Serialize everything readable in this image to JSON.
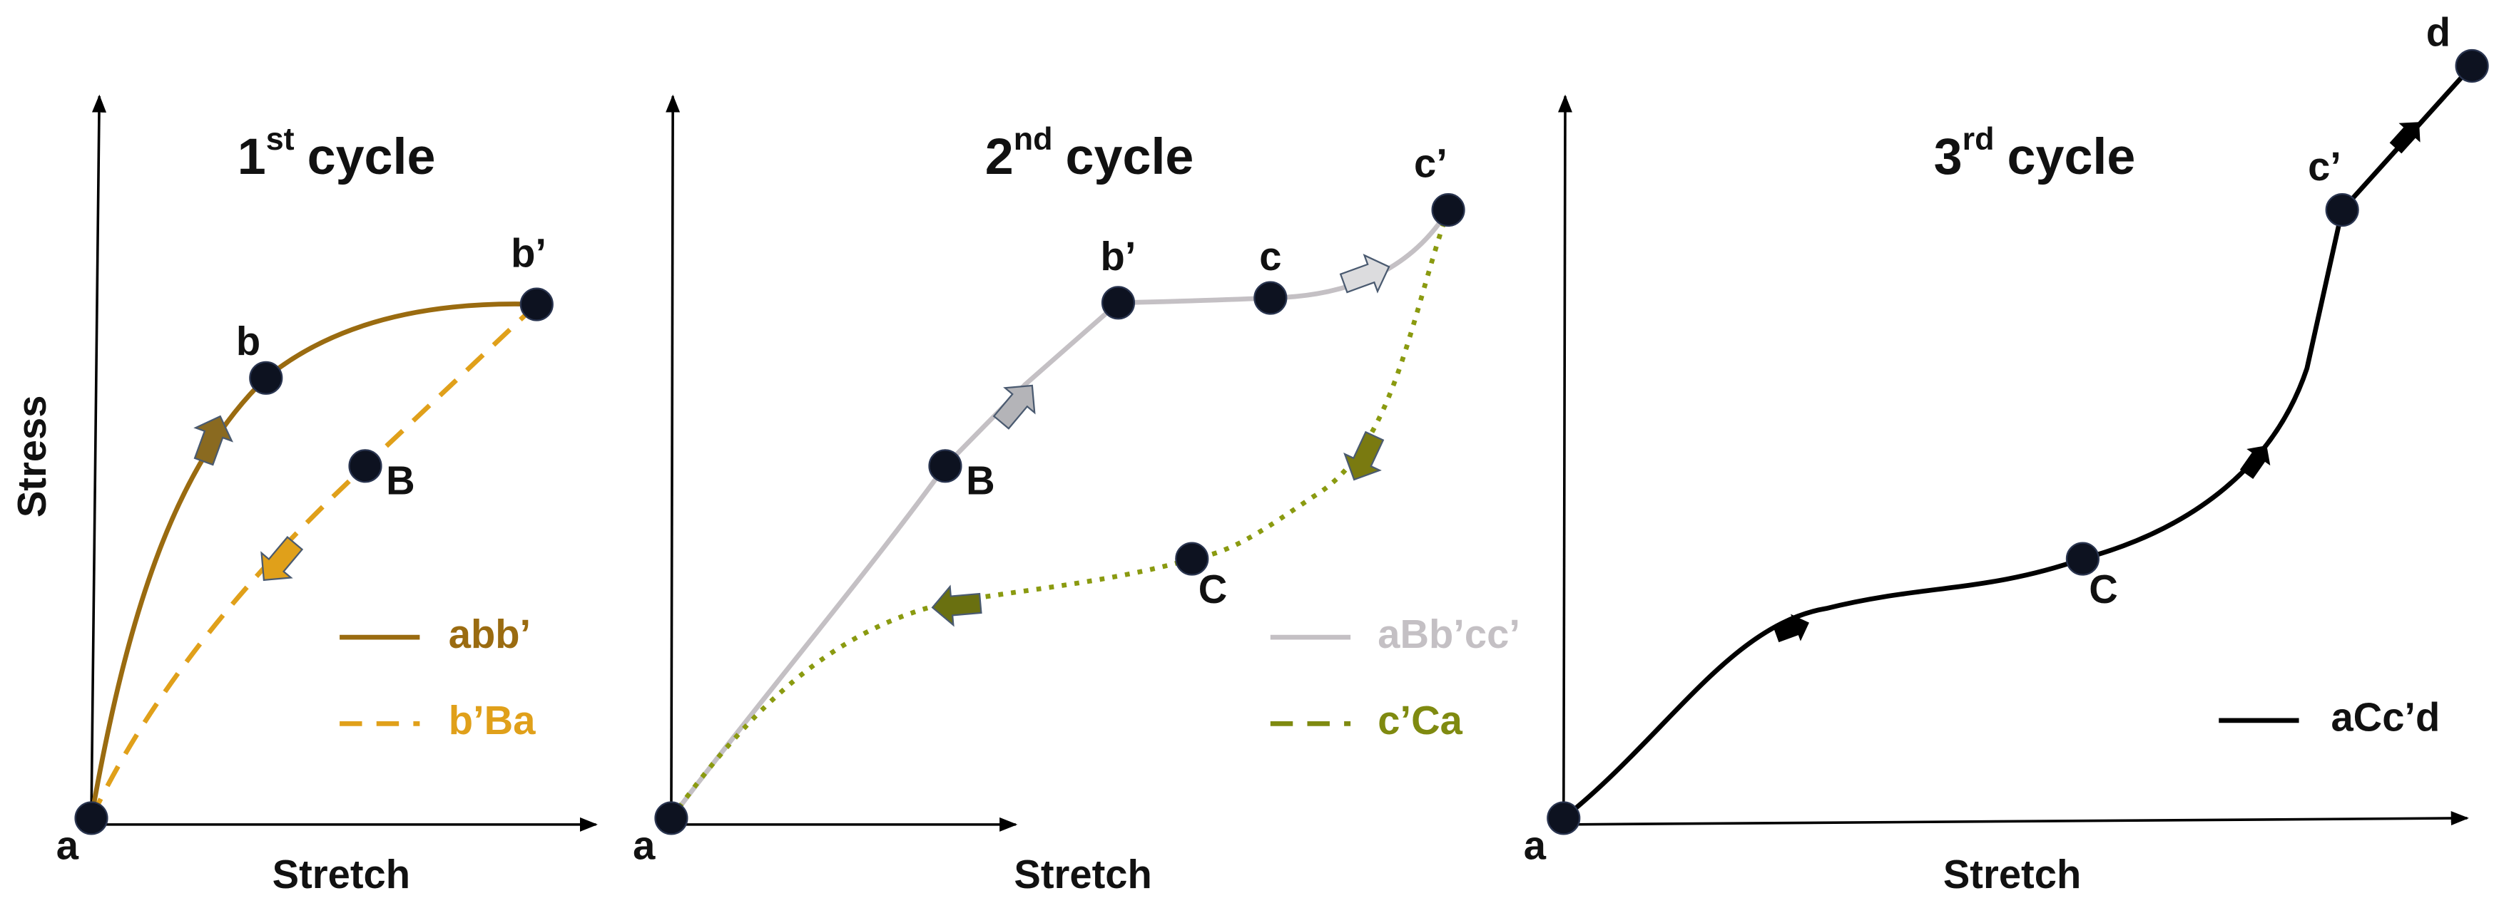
{
  "panels": [
    {
      "title": {
        "number": "1",
        "suffix": "st",
        "text": "cycle"
      },
      "y_axis_label": "Stress",
      "x_axis_label": "Stretch",
      "point_labels": [
        "a",
        "b",
        "b’",
        "B"
      ],
      "legend": [
        "abb’",
        "b’Ba"
      ]
    },
    {
      "title": {
        "number": "2",
        "suffix": "nd",
        "text": "cycle"
      },
      "x_axis_label": "Stretch",
      "point_labels": [
        "a",
        "B",
        "b’",
        "c",
        "c’",
        "C"
      ],
      "legend": [
        "aBb’cc’",
        "c’Ca"
      ]
    },
    {
      "title": {
        "number": "3",
        "suffix": "rd",
        "text": "cycle"
      },
      "x_axis_label": "Stretch",
      "point_labels": [
        "a",
        "C",
        "c’",
        "d"
      ],
      "legend": [
        "aCc’d"
      ]
    }
  ]
}
